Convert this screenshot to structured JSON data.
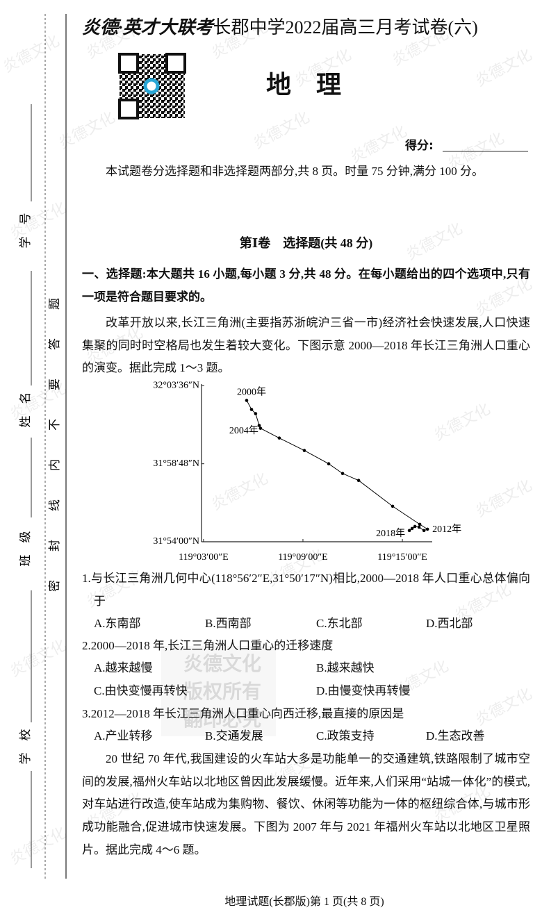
{
  "header": {
    "brand": "炎德·英才大联考",
    "title": "长郡中学2022届高三月考试卷(六)",
    "subject": "地　理",
    "score_label": "得分:"
  },
  "margin": {
    "labels": [
      "学　号",
      "姓　名",
      "班　级",
      "学　校"
    ],
    "seal": "密封线内不要答题"
  },
  "watermark": "炎德文化",
  "stamp": {
    "lines": [
      "炎德文化",
      "版权所有",
      "翻印必究"
    ]
  },
  "intro": "本试题卷分选择题和非选择题两部分,共 8 页。时量 75 分钟,满分 100 分。",
  "section_title": "第Ⅰ卷　选择题(共 48 分)",
  "part_heading": "一、选择题:本大题共 16 小题,每小题 3 分,共 48 分。在每小题给出的四个选项中,只有一项是符合题目要求的。",
  "passage1": "改革开放以来,长江三角洲(主要指苏浙皖沪三省一市)经济社会快速发展,人口快速集聚的同时时空格局也发生着较大变化。下图示意 2000—2018 年长江三角洲人口重心的演变。据此完成 1～3 题。",
  "chart_data": {
    "type": "line",
    "x": [
      119.0934,
      119.0983,
      119.1024,
      119.106,
      119.1073,
      119.1262,
      119.1514,
      119.1759,
      119.1899,
      119.206,
      119.2402,
      119.2675,
      119.2752,
      119.2717,
      119.2668,
      119.2626,
      119.2598,
      119.257
    ],
    "values": [
      32.045,
      32.0357,
      32.0314,
      32.0193,
      32.0164,
      32.0064,
      31.9936,
      31.98,
      31.97,
      31.9629,
      31.9364,
      31.9179,
      31.9129,
      31.9115,
      31.915,
      31.9157,
      31.9136,
      31.9115
    ],
    "color": "#000000",
    "xlim": [
      119.048,
      119.28
    ],
    "ylim": [
      31.9,
      32.0617
    ],
    "xticks": [
      {
        "value": 119.05,
        "label": "119°03′00″E"
      },
      {
        "value": 119.15,
        "label": "119°09′00″E"
      },
      {
        "value": 119.25,
        "label": "119°15′00″E"
      }
    ],
    "yticks": [
      {
        "value": 31.9,
        "label": "31°54′00″N"
      },
      {
        "value": 31.98,
        "label": "31°58′48″N"
      },
      {
        "value": 32.06,
        "label": "32°03′36″N"
      }
    ],
    "annotations": [
      {
        "text": "2000年",
        "x": 119.0934,
        "y": 32.045
      },
      {
        "text": "2004年",
        "x": 119.1073,
        "y": 32.0164
      },
      {
        "text": "2012年",
        "x": 119.2752,
        "y": 31.9129
      },
      {
        "text": "2018年",
        "x": 119.257,
        "y": 31.9115
      }
    ]
  },
  "questions": [
    {
      "stem": "1.与长江三角洲几何中心(118°56′2″E,31°50′17″N)相比,2000—2018 年人口重心总体偏向于",
      "options": [
        "A.东南部",
        "B.西南部",
        "C.东北部",
        "D.西北部"
      ]
    },
    {
      "stem": "2.2000—2018 年,长江三角洲人口重心的迁移速度",
      "options": [
        "A.越来越慢",
        "B.越来越快",
        "C.由快变慢再转快",
        "D.由慢变快再转慢"
      ]
    },
    {
      "stem": "3.2012—2018 年长江三角洲人口重心向西迁移,最直接的原因是",
      "options": [
        "A.产业转移",
        "B.交通发展",
        "C.政策支持",
        "D.生态改善"
      ]
    }
  ],
  "passage2": "20 世纪 70 年代,我国建设的火车站大多是功能单一的交通建筑,铁路限制了城市空间的发展,福州火车站以北地区曾因此发展缓慢。近年来,人们采用“站城一体化”的模式,对车站进行改造,使车站成为集购物、餐饮、休闲等功能为一体的枢纽综合体,与城市形成功能融合,促进城市快速发展。下图为 2007 年与 2021 年福州火车站以北地区卫星照片。据此完成 4～6 题。",
  "footer": "地理试题(长郡版)第 1 页(共 8 页)"
}
